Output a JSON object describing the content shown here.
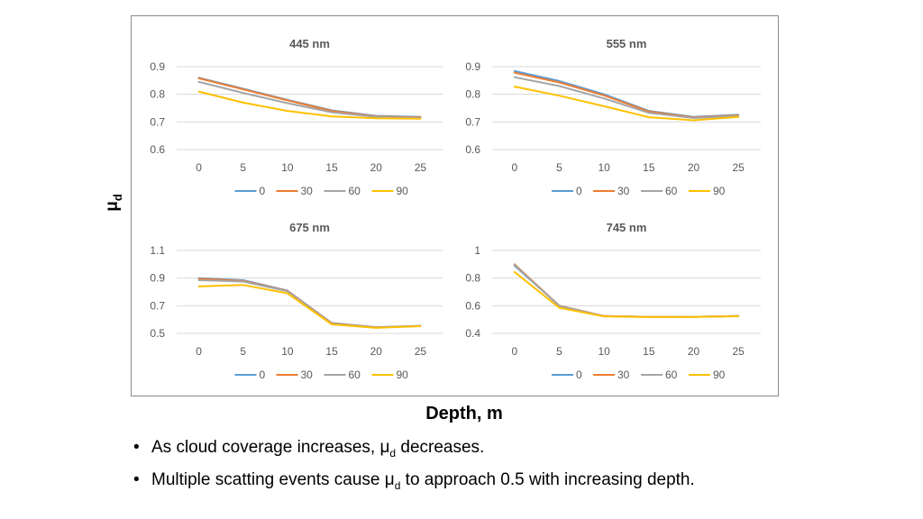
{
  "axes": {
    "y_label_symbol": "μ",
    "y_label_subscript": "d",
    "x_label": "Depth, m"
  },
  "bullets": [
    {
      "before": "As cloud coverage increases, μ",
      "sub": "d",
      "after": " decreases."
    },
    {
      "before": "Multiple scatting events cause μ",
      "sub": "d",
      "after": " to approach 0.5 with increasing depth."
    }
  ],
  "series_colors": [
    "#5B9BD5",
    "#ED7D31",
    "#A5A5A5",
    "#FFC000"
  ],
  "chart_data": [
    {
      "type": "line",
      "title": "445 nm",
      "x": [
        0,
        5,
        10,
        15,
        20,
        25
      ],
      "ylim": [
        0.6,
        0.9
      ],
      "yticks": [
        0.6,
        0.7,
        0.8,
        0.9
      ],
      "grid": true,
      "legend_position": "bottom",
      "series": [
        {
          "name": "0",
          "values": [
            0.86,
            0.82,
            0.78,
            0.742,
            0.722,
            0.718
          ]
        },
        {
          "name": "30",
          "values": [
            0.858,
            0.818,
            0.778,
            0.74,
            0.72,
            0.716
          ]
        },
        {
          "name": "60",
          "values": [
            0.845,
            0.805,
            0.768,
            0.735,
            0.718,
            0.714
          ]
        },
        {
          "name": "90",
          "values": [
            0.81,
            0.77,
            0.74,
            0.72,
            0.713,
            0.712
          ]
        }
      ]
    },
    {
      "type": "line",
      "title": "555 nm",
      "x": [
        0,
        5,
        10,
        15,
        20,
        25
      ],
      "ylim": [
        0.6,
        0.9
      ],
      "yticks": [
        0.6,
        0.7,
        0.8,
        0.9
      ],
      "grid": true,
      "legend_position": "bottom",
      "series": [
        {
          "name": "0",
          "values": [
            0.884,
            0.848,
            0.8,
            0.74,
            0.718,
            0.726
          ]
        },
        {
          "name": "30",
          "values": [
            0.878,
            0.843,
            0.796,
            0.738,
            0.716,
            0.724
          ]
        },
        {
          "name": "60",
          "values": [
            0.862,
            0.83,
            0.785,
            0.733,
            0.714,
            0.722
          ]
        },
        {
          "name": "90",
          "values": [
            0.828,
            0.795,
            0.757,
            0.717,
            0.706,
            0.718
          ]
        }
      ]
    },
    {
      "type": "line",
      "title": "675 nm",
      "x": [
        0,
        5,
        10,
        15,
        20,
        25
      ],
      "ylim": [
        0.5,
        1.1
      ],
      "yticks": [
        0.5,
        0.7,
        0.9,
        1.1
      ],
      "grid": true,
      "legend_position": "bottom",
      "series": [
        {
          "name": "0",
          "values": [
            0.9,
            0.885,
            0.81,
            0.575,
            0.545,
            0.555
          ]
        },
        {
          "name": "30",
          "values": [
            0.895,
            0.88,
            0.808,
            0.573,
            0.544,
            0.554
          ]
        },
        {
          "name": "60",
          "values": [
            0.885,
            0.875,
            0.805,
            0.57,
            0.543,
            0.553
          ]
        },
        {
          "name": "90",
          "values": [
            0.84,
            0.85,
            0.79,
            0.565,
            0.54,
            0.552
          ]
        }
      ]
    },
    {
      "type": "line",
      "title": "745 nm",
      "x": [
        0,
        5,
        10,
        15,
        20,
        25
      ],
      "ylim": [
        0.4,
        1.0
      ],
      "yticks": [
        0.4,
        0.6,
        0.8,
        1
      ],
      "grid": true,
      "legend_position": "bottom",
      "series": [
        {
          "name": "0",
          "values": [
            0.89,
            0.6,
            0.525,
            0.52,
            0.52,
            0.525
          ]
        },
        {
          "name": "30",
          "values": [
            0.9,
            0.6,
            0.525,
            0.52,
            0.52,
            0.525
          ]
        },
        {
          "name": "60",
          "values": [
            0.895,
            0.598,
            0.524,
            0.519,
            0.52,
            0.525
          ]
        },
        {
          "name": "90",
          "values": [
            0.845,
            0.585,
            0.523,
            0.518,
            0.519,
            0.524
          ]
        }
      ]
    }
  ]
}
